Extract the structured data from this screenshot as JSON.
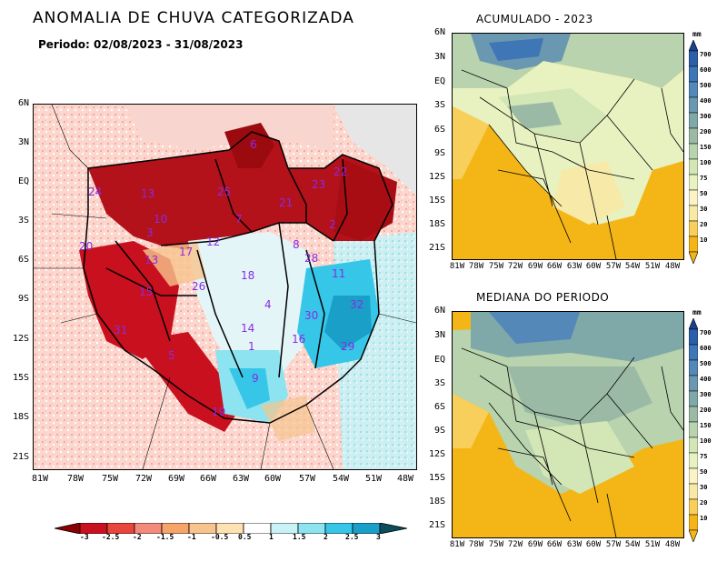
{
  "main": {
    "title": "ANOMALIA DE CHUVA CATEGORIZADA",
    "period": "Periodo: 02/08/2023 - 31/08/2023",
    "y_labels": [
      "6N",
      "3N",
      "EQ",
      "3S",
      "6S",
      "9S",
      "12S",
      "15S",
      "18S",
      "21S"
    ],
    "x_labels": [
      "81W",
      "78W",
      "75W",
      "72W",
      "69W",
      "66W",
      "63W",
      "60W",
      "57W",
      "54W",
      "51W",
      "48W"
    ],
    "region_numbers": [
      "6",
      "24",
      "13",
      "25",
      "21",
      "23",
      "22",
      "10",
      "3",
      "7",
      "2",
      "20",
      "17",
      "12",
      "8",
      "28",
      "13",
      "11",
      "18",
      "26",
      "15",
      "4",
      "32",
      "31",
      "14",
      "30",
      "16",
      "5",
      "9",
      "19",
      "1",
      "29"
    ],
    "colorbar": {
      "labels": [
        "-3",
        "-2.5",
        "-2",
        "-1.5",
        "-1",
        "-0.5",
        "0.5",
        "1",
        "1.5",
        "2",
        "2.5",
        "3"
      ],
      "colors": [
        "#8b0000",
        "#c8101e",
        "#e8463c",
        "#f28b7b",
        "#f7c48d",
        "#fde2b3",
        "#ffffff",
        "#c8f2f6",
        "#8de3ef",
        "#36c6e8",
        "#1aa0c8",
        "#14788f",
        "#0a4d5c"
      ]
    }
  },
  "top": {
    "title": "ACUMULADO - 2023",
    "y_labels": [
      "6N",
      "3N",
      "EQ",
      "3S",
      "6S",
      "9S",
      "12S",
      "15S",
      "18S",
      "21S"
    ],
    "x_labels": [
      "81W",
      "78W",
      "75W",
      "72W",
      "69W",
      "66W",
      "63W",
      "60W",
      "57W",
      "54W",
      "51W",
      "48W"
    ]
  },
  "bottom": {
    "title": "MEDIANA DO PERIODO",
    "y_labels": [
      "6N",
      "3N",
      "EQ",
      "3S",
      "6S",
      "9S",
      "12S",
      "15S",
      "18S",
      "21S"
    ],
    "x_labels": [
      "81W",
      "78W",
      "75W",
      "72W",
      "69W",
      "66W",
      "63W",
      "60W",
      "57W",
      "54W",
      "51W",
      "48W"
    ]
  },
  "mm_colorbar": {
    "unit": "mm",
    "labels": [
      "700",
      "600",
      "500",
      "400",
      "300",
      "200",
      "150",
      "100",
      "75",
      "50",
      "30",
      "20",
      "10"
    ],
    "colors": [
      "#1c3f8f",
      "#2c5fa8",
      "#3e76b6",
      "#5488b8",
      "#6a98b0",
      "#7fa8a8",
      "#9bbaa6",
      "#b8d3ad",
      "#d3e6b6",
      "#e8f2c0",
      "#f7e9a8",
      "#f8cf5a",
      "#f4b617"
    ]
  }
}
